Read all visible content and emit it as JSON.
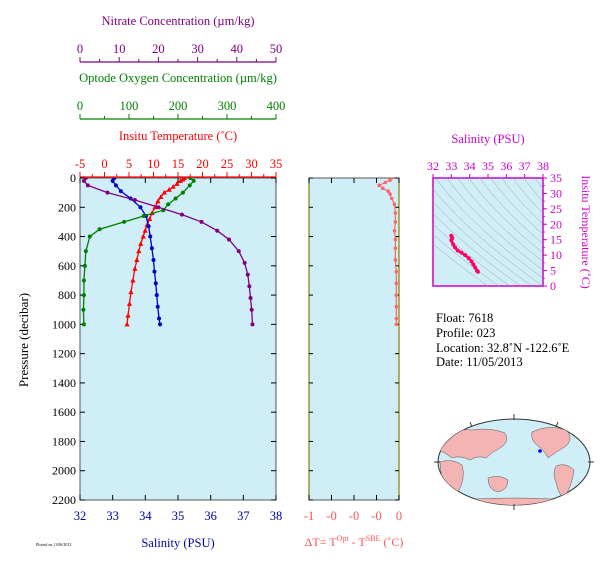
{
  "chart_data": [
    {
      "type": "line",
      "id": "main-profile",
      "ylabel": "Pressure (decibar)",
      "ylim": [
        0,
        2200
      ],
      "y_ticks": [
        0,
        200,
        400,
        600,
        800,
        1000,
        1200,
        1400,
        1600,
        1800,
        2000,
        2200
      ],
      "grid": false,
      "axes": [
        {
          "key": "nitrate",
          "label": "Nitrate Concentration (µm/kg)",
          "color": "#800080",
          "lim": [
            0,
            50
          ],
          "ticks": [
            0,
            10,
            20,
            30,
            40,
            50
          ]
        },
        {
          "key": "oxygen",
          "label": "Optode Oxygen Concentration (µm/kg)",
          "color": "#008000",
          "lim": [
            0,
            400
          ],
          "ticks": [
            0,
            100,
            200,
            300,
            400
          ]
        },
        {
          "key": "temperature",
          "label": "Insitu Temperature (˚C)",
          "color": "#ff0000",
          "lim": [
            -5,
            35
          ],
          "ticks": [
            -5,
            0,
            5,
            10,
            15,
            20,
            25,
            30,
            35
          ]
        },
        {
          "key": "salinity",
          "label": "Salinity (PSU)",
          "color": "#0000aa",
          "lim": [
            32,
            38
          ],
          "ticks": [
            32,
            33,
            34,
            35,
            36,
            37,
            38
          ]
        }
      ],
      "series": [
        {
          "axis": "temperature",
          "color": "#ff0000",
          "marker": "triangle",
          "points": [
            [
              16.3,
              0
            ],
            [
              16.0,
              10
            ],
            [
              15.5,
              20
            ],
            [
              14.8,
              40
            ],
            [
              14.0,
              60
            ],
            [
              13.2,
              80
            ],
            [
              12.2,
              100
            ],
            [
              11.5,
              130
            ],
            [
              10.9,
              160
            ],
            [
              10.3,
              200
            ],
            [
              9.7,
              240
            ],
            [
              9.2,
              280
            ],
            [
              8.7,
              320
            ],
            [
              8.3,
              360
            ],
            [
              7.9,
              400
            ],
            [
              7.4,
              450
            ],
            [
              7.0,
              500
            ],
            [
              6.6,
              560
            ],
            [
              6.2,
              620
            ],
            [
              5.8,
              700
            ],
            [
              5.4,
              780
            ],
            [
              5.1,
              860
            ],
            [
              4.8,
              940
            ],
            [
              4.6,
              1000
            ]
          ]
        },
        {
          "axis": "salinity",
          "color": "#0000cc",
          "marker": "circle",
          "points": [
            [
              33.05,
              0
            ],
            [
              33.0,
              20
            ],
            [
              33.1,
              50
            ],
            [
              33.25,
              90
            ],
            [
              33.55,
              140
            ],
            [
              33.85,
              200
            ],
            [
              34.02,
              260
            ],
            [
              34.1,
              330
            ],
            [
              34.15,
              400
            ],
            [
              34.2,
              480
            ],
            [
              34.25,
              560
            ],
            [
              34.28,
              640
            ],
            [
              34.32,
              720
            ],
            [
              34.35,
              800
            ],
            [
              34.38,
              880
            ],
            [
              34.42,
              960
            ],
            [
              34.45,
              1000
            ]
          ]
        },
        {
          "axis": "oxygen",
          "color": "#008000",
          "marker": "circle",
          "points": [
            [
              225,
              0
            ],
            [
              232,
              20
            ],
            [
              224,
              50
            ],
            [
              210,
              100
            ],
            [
              195,
              140
            ],
            [
              180,
              180
            ],
            [
              170,
              220
            ],
            [
              130,
              260
            ],
            [
              90,
              300
            ],
            [
              40,
              350
            ],
            [
              20,
              400
            ],
            [
              12,
              500
            ],
            [
              10,
              600
            ],
            [
              8,
              700
            ],
            [
              8,
              800
            ],
            [
              7,
              900
            ],
            [
              8,
              1000
            ]
          ]
        },
        {
          "axis": "nitrate",
          "color": "#800080",
          "marker": "circle",
          "points": [
            [
              1.5,
              0
            ],
            [
              1.0,
              20
            ],
            [
              2.0,
              50
            ],
            [
              7.0,
              100
            ],
            [
              14.0,
              150
            ],
            [
              20.0,
              200
            ],
            [
              26.0,
              250
            ],
            [
              31.0,
              300
            ],
            [
              35.0,
              360
            ],
            [
              38.0,
              420
            ],
            [
              40.5,
              500
            ],
            [
              42.0,
              580
            ],
            [
              42.8,
              660
            ],
            [
              43.2,
              740
            ],
            [
              43.5,
              820
            ],
            [
              43.8,
              900
            ],
            [
              44.0,
              1000
            ]
          ]
        }
      ]
    },
    {
      "type": "line",
      "id": "delta-t",
      "xlabel_main": "ΔT= T",
      "xlabel_sup1": "Opt",
      "xlabel_mid": " - T",
      "xlabel_sup2": "SBE",
      "xlabel_end": " (˚C)",
      "xlim": [
        -1,
        0
      ],
      "ylim": [
        0,
        2200
      ],
      "x_ticks": [
        -1,
        -0.75,
        -0.5,
        -0.25,
        0
      ],
      "x_tick_labels": [
        "-1",
        "-0",
        "-0",
        "-0",
        "0"
      ],
      "color": "#ff6666",
      "points": [
        [
          -0.08,
          0
        ],
        [
          -0.1,
          15
        ],
        [
          -0.15,
          30
        ],
        [
          -0.22,
          50
        ],
        [
          -0.18,
          70
        ],
        [
          -0.12,
          90
        ],
        [
          -0.1,
          110
        ],
        [
          -0.08,
          140
        ],
        [
          -0.05,
          180
        ],
        [
          -0.04,
          240
        ],
        [
          -0.04,
          300
        ],
        [
          -0.05,
          360
        ],
        [
          -0.04,
          420
        ],
        [
          -0.04,
          480
        ],
        [
          -0.04,
          560
        ],
        [
          -0.03,
          640
        ],
        [
          -0.03,
          720
        ],
        [
          -0.03,
          800
        ],
        [
          -0.03,
          880
        ],
        [
          -0.03,
          960
        ],
        [
          -0.03,
          1000
        ]
      ]
    },
    {
      "type": "line",
      "id": "ts-diagram",
      "xlabel": "Salinity (PSU)",
      "ylabel": "Insitu Temperature (˚C)",
      "xlim": [
        32,
        38
      ],
      "ylim": [
        0,
        35
      ],
      "x_ticks": [
        32,
        33,
        34,
        35,
        36,
        37,
        38
      ],
      "y_ticks": [
        0,
        5,
        10,
        15,
        20,
        25,
        30,
        35
      ],
      "color": "#ff0066",
      "points": [
        [
          33.0,
          16.3
        ],
        [
          33.05,
          15.5
        ],
        [
          33.0,
          14.8
        ],
        [
          33.1,
          13.5
        ],
        [
          33.2,
          12.5
        ],
        [
          33.35,
          11.5
        ],
        [
          33.55,
          10.8
        ],
        [
          33.75,
          10.0
        ],
        [
          33.95,
          9.0
        ],
        [
          34.1,
          8.0
        ],
        [
          34.2,
          7.0
        ],
        [
          34.3,
          6.0
        ],
        [
          34.4,
          5.0
        ],
        [
          34.45,
          4.6
        ]
      ]
    }
  ],
  "info": {
    "float": "Float:  7618",
    "profile": "Profile:  023",
    "location": "Location:  32.8˚N  -122.6˚E",
    "date": "Date:  11/05/2013"
  },
  "footer": {
    "small_text": "Plotted on 11/06/2013"
  }
}
